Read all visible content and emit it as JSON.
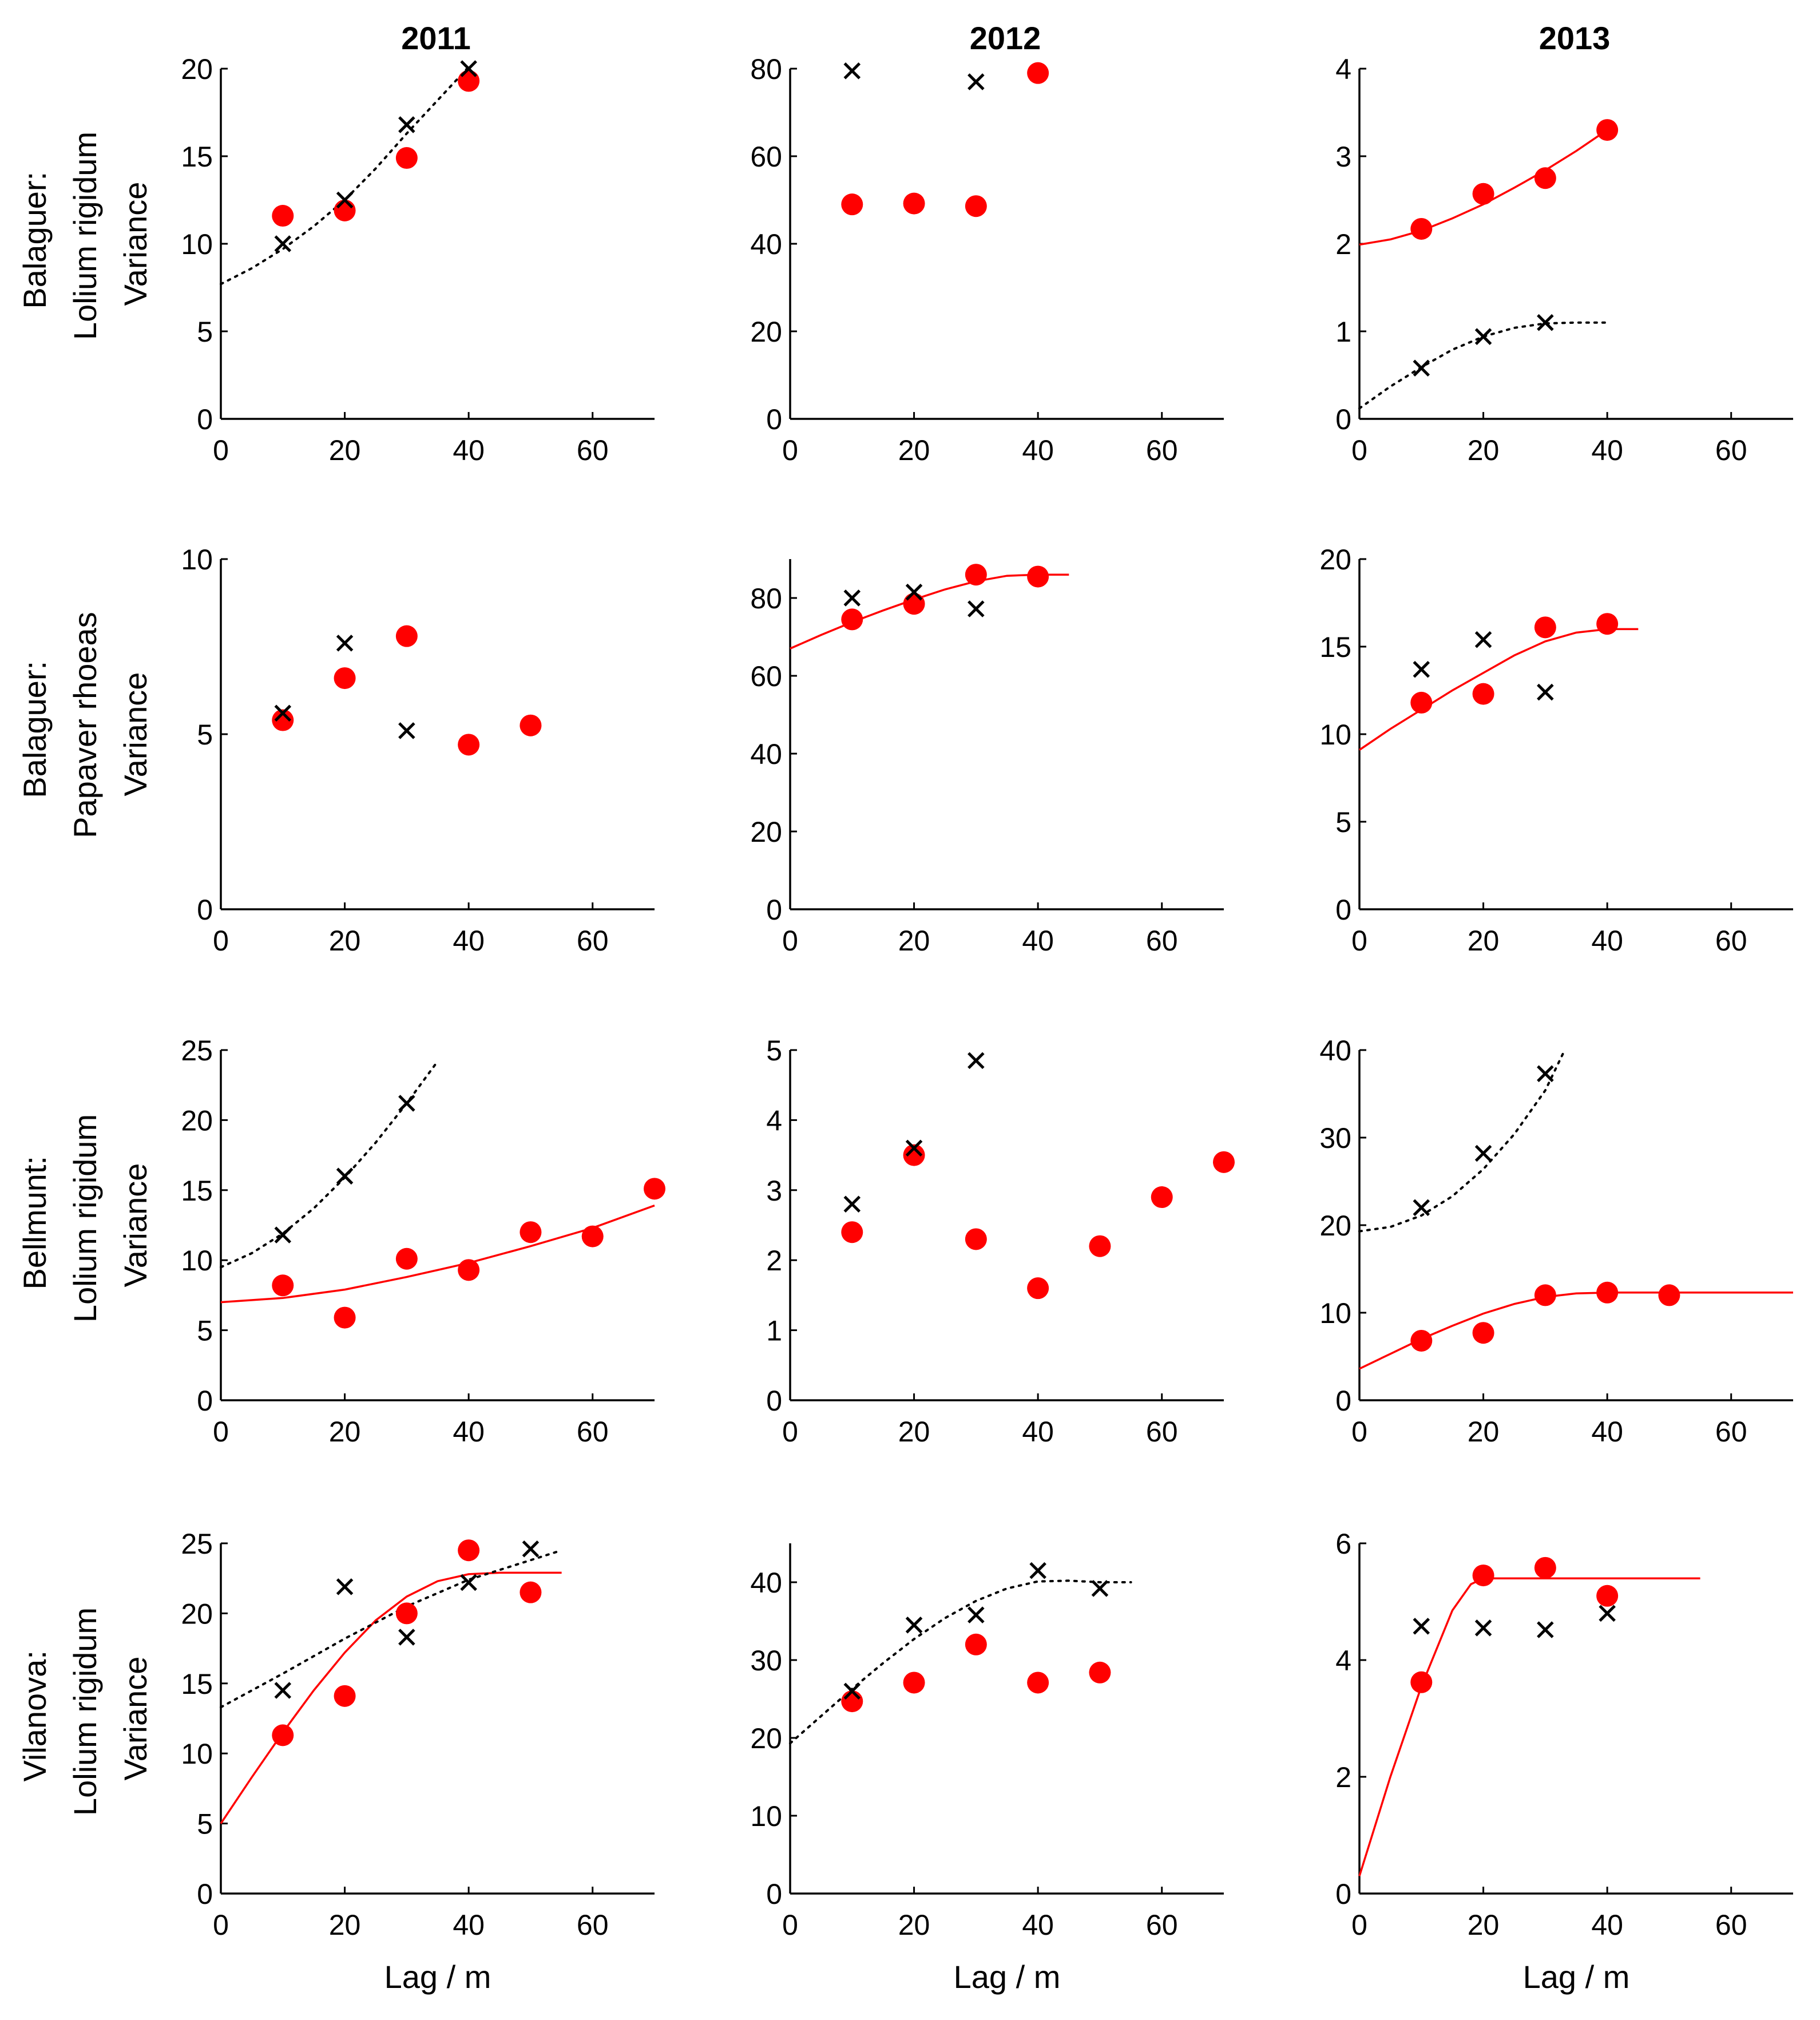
{
  "figure": {
    "column_titles": [
      "2011",
      "2012",
      "2013"
    ],
    "row_labels": [
      [
        "Balaguer:",
        "Lolium rigidum",
        "Variance"
      ],
      [
        "Balaguer:",
        "Papaver rhoeas",
        "Variance"
      ],
      [
        "Bellmunt:",
        "Lolium rigidum",
        "Variance"
      ],
      [
        "Vilanova:",
        "Lolium rigidum",
        "Variance"
      ]
    ],
    "xlabel": "Lag / m",
    "colors": {
      "dot": "#ff0000",
      "cross": "#000000",
      "fit_red": "#ff0000",
      "fit_black": "#000000"
    }
  },
  "chart_data": [
    {
      "type": "scatter",
      "row": 0,
      "col": 0,
      "title": "2011",
      "ylabel": "Variance",
      "xlabel": "",
      "xlim": [
        0,
        70
      ],
      "ylim": [
        0,
        20
      ],
      "xticks": [
        0,
        20,
        40,
        60
      ],
      "yticks": [
        0,
        5,
        10,
        15,
        20
      ],
      "series": [
        {
          "name": "dots",
          "marker": "dot",
          "x": [
            10,
            20,
            30,
            40
          ],
          "y": [
            11.6,
            11.9,
            14.9,
            19.3
          ]
        },
        {
          "name": "crosses",
          "marker": "x",
          "x": [
            10,
            20,
            30,
            40
          ],
          "y": [
            10.0,
            12.5,
            16.8,
            20.0
          ]
        },
        {
          "name": "fit-dotted",
          "style": "dotted",
          "x": [
            0,
            5,
            10,
            15,
            20,
            25,
            30,
            35,
            40
          ],
          "y": [
            7.7,
            8.6,
            9.7,
            11.0,
            12.5,
            14.3,
            16.3,
            18.2,
            20.1
          ]
        }
      ]
    },
    {
      "type": "scatter",
      "row": 0,
      "col": 1,
      "title": "2012",
      "ylabel": "",
      "xlabel": "",
      "xlim": [
        0,
        70
      ],
      "ylim": [
        0,
        80
      ],
      "xticks": [
        0,
        20,
        40,
        60
      ],
      "yticks": [
        0,
        20,
        40,
        60,
        80
      ],
      "series": [
        {
          "name": "dots",
          "marker": "dot",
          "x": [
            10,
            20,
            30,
            40
          ],
          "y": [
            49,
            49.2,
            48.6,
            79
          ]
        },
        {
          "name": "crosses",
          "marker": "x",
          "x": [
            10,
            30
          ],
          "y": [
            79.5,
            77
          ]
        }
      ]
    },
    {
      "type": "scatter",
      "row": 0,
      "col": 2,
      "title": "2013",
      "ylabel": "",
      "xlabel": "",
      "xlim": [
        0,
        70
      ],
      "ylim": [
        0,
        4
      ],
      "xticks": [
        0,
        20,
        40,
        60
      ],
      "yticks": [
        0,
        1,
        2,
        3,
        4
      ],
      "series": [
        {
          "name": "dots",
          "marker": "dot",
          "x": [
            10,
            20,
            30,
            40
          ],
          "y": [
            2.17,
            2.57,
            2.75,
            3.3
          ]
        },
        {
          "name": "crosses",
          "marker": "x",
          "x": [
            10,
            20,
            30
          ],
          "y": [
            0.58,
            0.94,
            1.1
          ]
        },
        {
          "name": "fit-red",
          "style": "solid",
          "x": [
            0,
            5,
            10,
            15,
            20,
            25,
            30,
            35,
            40
          ],
          "y": [
            1.99,
            2.05,
            2.15,
            2.29,
            2.45,
            2.64,
            2.84,
            3.06,
            3.3
          ]
        },
        {
          "name": "fit-dotted",
          "style": "dotted",
          "x": [
            0,
            5,
            10,
            15,
            20,
            25,
            30,
            35,
            40
          ],
          "y": [
            0.12,
            0.37,
            0.59,
            0.79,
            0.94,
            1.04,
            1.09,
            1.1,
            1.1
          ]
        }
      ]
    },
    {
      "type": "scatter",
      "row": 1,
      "col": 0,
      "title": "",
      "ylabel": "Variance",
      "xlabel": "",
      "xlim": [
        0,
        70
      ],
      "ylim": [
        0,
        10
      ],
      "xticks": [
        0,
        20,
        40,
        60
      ],
      "yticks": [
        0,
        5,
        10
      ],
      "series": [
        {
          "name": "dots",
          "marker": "dot",
          "x": [
            10,
            20,
            30,
            40,
            50
          ],
          "y": [
            5.4,
            6.6,
            7.8,
            4.7,
            5.25
          ]
        },
        {
          "name": "crosses",
          "marker": "x",
          "x": [
            10,
            20,
            30
          ],
          "y": [
            5.6,
            7.6,
            5.1
          ]
        }
      ]
    },
    {
      "type": "scatter",
      "row": 1,
      "col": 1,
      "title": "",
      "ylabel": "",
      "xlabel": "",
      "xlim": [
        0,
        70
      ],
      "ylim": [
        0,
        90
      ],
      "xticks": [
        0,
        20,
        40,
        60
      ],
      "yticks": [
        0,
        20,
        40,
        60,
        80
      ],
      "series": [
        {
          "name": "dots",
          "marker": "dot",
          "x": [
            10,
            20,
            30,
            40
          ],
          "y": [
            74.5,
            78.5,
            86,
            85.5
          ]
        },
        {
          "name": "crosses",
          "marker": "x",
          "x": [
            10,
            20,
            30
          ],
          "y": [
            80,
            81.5,
            77.2
          ]
        },
        {
          "name": "fit-red",
          "style": "solid",
          "x": [
            0,
            5,
            10,
            15,
            20,
            25,
            30,
            35,
            40,
            45
          ],
          "y": [
            67,
            70.5,
            73.8,
            76.8,
            79.6,
            82.2,
            84.3,
            85.7,
            86,
            86
          ]
        }
      ]
    },
    {
      "type": "scatter",
      "row": 1,
      "col": 2,
      "title": "",
      "ylabel": "",
      "xlabel": "",
      "xlim": [
        0,
        70
      ],
      "ylim": [
        0,
        20
      ],
      "xticks": [
        0,
        20,
        40,
        60
      ],
      "yticks": [
        0,
        5,
        10,
        15,
        20
      ],
      "series": [
        {
          "name": "dots",
          "marker": "dot",
          "x": [
            10,
            20,
            30,
            40
          ],
          "y": [
            11.8,
            12.3,
            16.1,
            16.3
          ]
        },
        {
          "name": "crosses",
          "marker": "x",
          "x": [
            10,
            20,
            30
          ],
          "y": [
            13.7,
            15.4,
            12.4
          ]
        },
        {
          "name": "fit-red",
          "style": "solid",
          "x": [
            0,
            5,
            10,
            15,
            20,
            25,
            30,
            35,
            40,
            45
          ],
          "y": [
            9.1,
            10.3,
            11.4,
            12.5,
            13.5,
            14.5,
            15.3,
            15.8,
            16.0,
            16.0
          ]
        }
      ]
    },
    {
      "type": "scatter",
      "row": 2,
      "col": 0,
      "title": "",
      "ylabel": "Variance",
      "xlabel": "",
      "xlim": [
        0,
        70
      ],
      "ylim": [
        0,
        25
      ],
      "xticks": [
        0,
        20,
        40,
        60
      ],
      "yticks": [
        0,
        5,
        10,
        15,
        20,
        25
      ],
      "series": [
        {
          "name": "dots",
          "marker": "dot",
          "x": [
            10,
            20,
            30,
            40,
            50,
            60,
            70
          ],
          "y": [
            8.2,
            5.9,
            10.1,
            9.3,
            12,
            11.7,
            15.1
          ]
        },
        {
          "name": "crosses",
          "marker": "x",
          "x": [
            10,
            20,
            30
          ],
          "y": [
            11.8,
            16,
            21.2
          ]
        },
        {
          "name": "fit-red",
          "style": "solid",
          "x": [
            0,
            10,
            20,
            30,
            40,
            50,
            60,
            70
          ],
          "y": [
            7.0,
            7.3,
            7.9,
            8.8,
            9.8,
            11.0,
            12.3,
            13.9
          ]
        },
        {
          "name": "fit-dotted",
          "style": "dotted",
          "x": [
            0,
            5,
            10,
            15,
            20,
            25,
            30,
            35
          ],
          "y": [
            9.5,
            10.5,
            11.9,
            13.7,
            15.9,
            18.4,
            21.2,
            24.2
          ]
        }
      ]
    },
    {
      "type": "scatter",
      "row": 2,
      "col": 1,
      "title": "",
      "ylabel": "",
      "xlabel": "",
      "xlim": [
        0,
        70
      ],
      "ylim": [
        0,
        5
      ],
      "xticks": [
        0,
        20,
        40,
        60
      ],
      "yticks": [
        0,
        1,
        2,
        3,
        4,
        5
      ],
      "series": [
        {
          "name": "dots",
          "marker": "dot",
          "x": [
            10,
            20,
            30,
            40,
            50,
            60,
            70
          ],
          "y": [
            2.4,
            3.5,
            2.3,
            1.6,
            2.2,
            2.9,
            3.4
          ]
        },
        {
          "name": "crosses",
          "marker": "x",
          "x": [
            10,
            20,
            30
          ],
          "y": [
            2.8,
            3.6,
            4.85
          ]
        }
      ]
    },
    {
      "type": "scatter",
      "row": 2,
      "col": 2,
      "title": "",
      "ylabel": "",
      "xlabel": "",
      "xlim": [
        0,
        70
      ],
      "ylim": [
        0,
        40
      ],
      "xticks": [
        0,
        20,
        40,
        60
      ],
      "yticks": [
        0,
        10,
        20,
        30,
        40
      ],
      "series": [
        {
          "name": "dots",
          "marker": "dot",
          "x": [
            10,
            20,
            30,
            40,
            50
          ],
          "y": [
            6.8,
            7.7,
            12,
            12.3,
            12
          ]
        },
        {
          "name": "crosses",
          "marker": "x",
          "x": [
            10,
            20,
            30
          ],
          "y": [
            22,
            28.2,
            37.3
          ]
        },
        {
          "name": "fit-red",
          "style": "solid",
          "x": [
            0,
            5,
            10,
            15,
            20,
            25,
            30,
            35,
            40,
            45,
            50,
            55,
            60,
            65,
            70
          ],
          "y": [
            3.6,
            5.3,
            7.0,
            8.5,
            9.9,
            11.0,
            11.8,
            12.2,
            12.3,
            12.3,
            12.3,
            12.3,
            12.3,
            12.3,
            12.3
          ]
        },
        {
          "name": "fit-dotted",
          "style": "dotted",
          "x": [
            0,
            5,
            10,
            15,
            20,
            25,
            30,
            33
          ],
          "y": [
            19.3,
            19.8,
            21.1,
            23.3,
            26.4,
            30.4,
            35.4,
            39.8
          ]
        }
      ]
    },
    {
      "type": "scatter",
      "row": 3,
      "col": 0,
      "title": "",
      "ylabel": "Variance",
      "xlabel": "Lag / m",
      "xlim": [
        0,
        70
      ],
      "ylim": [
        0,
        25
      ],
      "xticks": [
        0,
        20,
        40,
        60
      ],
      "yticks": [
        0,
        5,
        10,
        15,
        20,
        25
      ],
      "series": [
        {
          "name": "dots",
          "marker": "dot",
          "x": [
            10,
            20,
            30,
            40,
            50
          ],
          "y": [
            11.3,
            14.1,
            20,
            24.5,
            21.5
          ]
        },
        {
          "name": "crosses",
          "marker": "x",
          "x": [
            10,
            20,
            30,
            40,
            50
          ],
          "y": [
            14.5,
            21.9,
            18.3,
            22.2,
            24.6
          ]
        },
        {
          "name": "fit-red",
          "style": "solid",
          "x": [
            0,
            5,
            10,
            15,
            20,
            25,
            30,
            35,
            40,
            45,
            50,
            55
          ],
          "y": [
            5,
            8.3,
            11.5,
            14.5,
            17.2,
            19.5,
            21.2,
            22.3,
            22.8,
            22.9,
            22.9,
            22.9
          ]
        },
        {
          "name": "fit-dotted",
          "style": "dotted",
          "x": [
            0,
            10,
            20,
            30,
            40,
            50,
            55
          ],
          "y": [
            13.3,
            15.7,
            18.2,
            20.5,
            22.4,
            23.8,
            24.5
          ]
        }
      ]
    },
    {
      "type": "scatter",
      "row": 3,
      "col": 1,
      "title": "",
      "ylabel": "",
      "xlabel": "Lag / m",
      "xlim": [
        0,
        70
      ],
      "ylim": [
        0,
        45
      ],
      "xticks": [
        0,
        20,
        40,
        60
      ],
      "yticks": [
        0,
        10,
        20,
        30,
        40
      ],
      "series": [
        {
          "name": "dots",
          "marker": "dot",
          "x": [
            10,
            20,
            30,
            40,
            50
          ],
          "y": [
            24.7,
            27.1,
            32,
            27.1,
            28.4
          ]
        },
        {
          "name": "crosses",
          "marker": "x",
          "x": [
            10,
            20,
            30,
            40,
            50
          ],
          "y": [
            26,
            34.5,
            35.8,
            41.5,
            39.2
          ]
        },
        {
          "name": "fit-dotted",
          "style": "dotted",
          "x": [
            0,
            5,
            10,
            15,
            20,
            25,
            30,
            35,
            40,
            45,
            50,
            55
          ],
          "y": [
            19.3,
            22.8,
            26.3,
            29.6,
            32.7,
            35.4,
            37.6,
            39.2,
            40.1,
            40.2,
            40.0,
            40.0
          ]
        }
      ]
    },
    {
      "type": "scatter",
      "row": 3,
      "col": 2,
      "title": "",
      "ylabel": "",
      "xlabel": "Lag / m",
      "xlim": [
        0,
        70
      ],
      "ylim": [
        0,
        6
      ],
      "xticks": [
        0,
        20,
        40,
        60
      ],
      "yticks": [
        0,
        2,
        4,
        6
      ],
      "series": [
        {
          "name": "dots",
          "marker": "dot",
          "x": [
            10,
            20,
            30,
            40
          ],
          "y": [
            3.62,
            5.45,
            5.58,
            5.1
          ]
        },
        {
          "name": "crosses",
          "marker": "x",
          "x": [
            10,
            20,
            30,
            40
          ],
          "y": [
            4.58,
            4.55,
            4.52,
            4.8
          ]
        },
        {
          "name": "fit-red",
          "style": "solid",
          "x": [
            0,
            5,
            10,
            15,
            18,
            20,
            25,
            30,
            40,
            50,
            55
          ],
          "y": [
            0.3,
            2.0,
            3.55,
            4.85,
            5.3,
            5.4,
            5.4,
            5.4,
            5.4,
            5.4,
            5.4
          ]
        }
      ]
    }
  ]
}
